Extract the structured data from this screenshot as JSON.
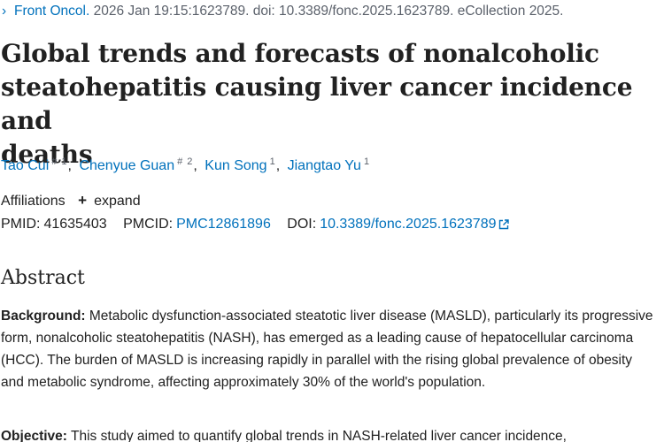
{
  "citation": {
    "chevron": "›",
    "journal": "Front Oncol.",
    "rest": " 2026 Jan 19:15:1623789. doi: 10.3389/fonc.2025.1623789. eCollection 2025."
  },
  "title_lines": [
    "Global trends and forecasts of nonalcoholic",
    "steatohepatitis causing liver cancer incidence and",
    "deaths"
  ],
  "authors": [
    {
      "name": "Tao Cui",
      "sup": "# 1"
    },
    {
      "name": "Chenyue Guan",
      "sup": "# 2"
    },
    {
      "name": "Kun Song",
      "sup": "1"
    },
    {
      "name": "Jiangtao Yu",
      "sup": "1"
    }
  ],
  "affiliations": {
    "label": "Affiliations",
    "expand_label": "expand",
    "expand_icon": "plus-icon"
  },
  "identifiers": {
    "pmid_label": "PMID:",
    "pmid": "41635403",
    "pmcid_label": "PMCID:",
    "pmcid": "PMC12861896",
    "doi_label": "DOI:",
    "doi": "10.3389/fonc.2025.1623789",
    "doi_icon": "external-link-icon"
  },
  "abstract": {
    "heading": "Abstract",
    "sections": [
      {
        "label": "Background:",
        "text": " Metabolic dysfunction-associated steatotic liver disease (MASLD), particularly its progressive form, nonalcoholic steatohepatitis (NASH), has emerged as a leading cause of hepatocellular carcinoma (HCC). The burden of MASLD is increasing rapidly in parallel with the rising global prevalence of obesity and metabolic syndrome, affecting approximately 30% of the world's population."
      },
      {
        "label": "Objective:",
        "text": " This study aimed to quantify global trends in NASH-related liver cancer incidence,"
      }
    ]
  },
  "colors": {
    "link": "#0071bc",
    "text": "#212121",
    "muted": "#5b616b"
  }
}
